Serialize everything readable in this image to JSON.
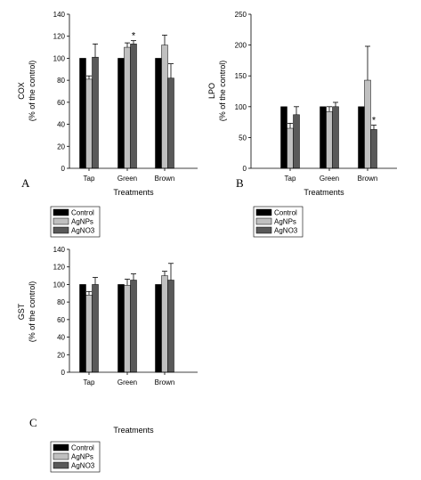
{
  "colors": {
    "Control": "#000000",
    "AgNPs": "#c0c0c0",
    "AgNO3": "#595959"
  },
  "chart_data": [
    {
      "type": "bar",
      "panel_letter": "A",
      "xlabel": "Treatments",
      "ylabel_line1": "COX",
      "ylabel_line2": "(% of the control)",
      "categories": [
        "Tap",
        "Green",
        "Brown"
      ],
      "ylim": [
        0,
        140
      ],
      "yticks": [
        0,
        20,
        40,
        60,
        80,
        100,
        120,
        140
      ],
      "series": [
        {
          "name": "Control",
          "values": [
            100,
            100,
            100
          ],
          "errors": [
            0,
            0,
            0
          ]
        },
        {
          "name": "AgNPs",
          "values": [
            81,
            110,
            112
          ],
          "errors": [
            3,
            4,
            9
          ]
        },
        {
          "name": "AgNO3",
          "values": [
            101,
            113,
            82
          ],
          "errors": [
            12,
            3,
            13
          ]
        }
      ],
      "annotations": [
        {
          "text": "*",
          "category": "Green",
          "series": "AgNO3"
        }
      ],
      "legend": [
        "Control",
        "AgNPs",
        "AgNO3"
      ],
      "grid": false,
      "legend_placement": "below"
    },
    {
      "type": "bar",
      "panel_letter": "B",
      "xlabel": "Treatments",
      "ylabel_line1": "LPO",
      "ylabel_line2": "(% of the control)",
      "categories": [
        "Tap",
        "Green",
        "Brown"
      ],
      "ylim": [
        0,
        250
      ],
      "yticks": [
        0,
        50,
        100,
        150,
        200,
        250
      ],
      "series": [
        {
          "name": "Control",
          "values": [
            100,
            100,
            100
          ],
          "errors": [
            0,
            0,
            0
          ]
        },
        {
          "name": "AgNPs",
          "values": [
            65,
            92,
            143
          ],
          "errors": [
            8,
            8,
            55
          ]
        },
        {
          "name": "AgNO3",
          "values": [
            87,
            100,
            63
          ],
          "errors": [
            13,
            7,
            7
          ]
        }
      ],
      "annotations": [
        {
          "text": "*",
          "category": "Brown",
          "series": "AgNO3"
        }
      ],
      "legend": [
        "Control",
        "AgNPs",
        "AgNO3"
      ],
      "grid": false,
      "legend_placement": "below"
    },
    {
      "type": "bar",
      "panel_letter": "C",
      "xlabel": "Treatments",
      "ylabel_line1": "GST",
      "ylabel_line2": "(% of the control)",
      "categories": [
        "Tap",
        "Green",
        "Brown"
      ],
      "ylim": [
        0,
        140
      ],
      "yticks": [
        0,
        20,
        40,
        60,
        80,
        100,
        120,
        140
      ],
      "series": [
        {
          "name": "Control",
          "values": [
            100,
            100,
            100
          ],
          "errors": [
            0,
            0,
            0
          ]
        },
        {
          "name": "AgNPs",
          "values": [
            88,
            99,
            110
          ],
          "errors": [
            4,
            7,
            5
          ]
        },
        {
          "name": "AgNO3",
          "values": [
            100,
            105,
            105
          ],
          "errors": [
            8,
            7,
            19
          ]
        }
      ],
      "annotations": [],
      "legend": [
        "Control",
        "AgNPs",
        "AgNO3"
      ],
      "grid": false,
      "legend_placement": "below"
    }
  ]
}
